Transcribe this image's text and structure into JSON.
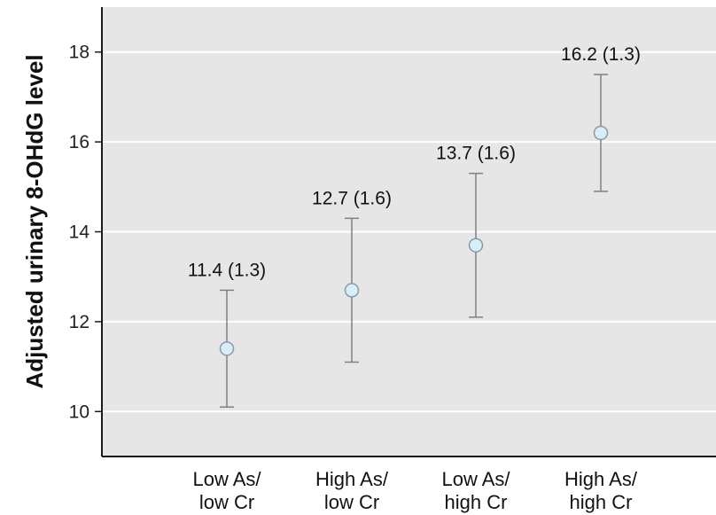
{
  "chart_data": {
    "type": "scatter",
    "title": "",
    "xlabel": "",
    "ylabel": "Adjusted urinary 8-OHdG level",
    "ylim": [
      9,
      19
    ],
    "yticks": [
      10,
      12,
      14,
      16,
      18
    ],
    "grid": true,
    "categories": [
      [
        "Low As/",
        "low Cr"
      ],
      [
        "High As/",
        "low Cr"
      ],
      [
        "Low As/",
        "high Cr"
      ],
      [
        "High As/",
        "high Cr"
      ]
    ],
    "series": [
      {
        "values": [
          11.4,
          12.7,
          13.7,
          16.2
        ],
        "error_low": [
          10.1,
          11.1,
          12.1,
          14.9
        ],
        "error_high": [
          12.7,
          14.3,
          15.3,
          17.5
        ]
      }
    ],
    "data_labels": [
      "11.4 (1.3)",
      "12.7 (1.6)",
      "13.7 (1.6)",
      "16.2 (1.3)"
    ]
  },
  "colors": {
    "plot_background": "#e6e6e6",
    "gridline": "#ffffff",
    "axis": "#1a1a1a",
    "error_bar": "#808080",
    "marker_fill": "#d6f0fb",
    "marker_stroke": "#8a9aa3"
  }
}
